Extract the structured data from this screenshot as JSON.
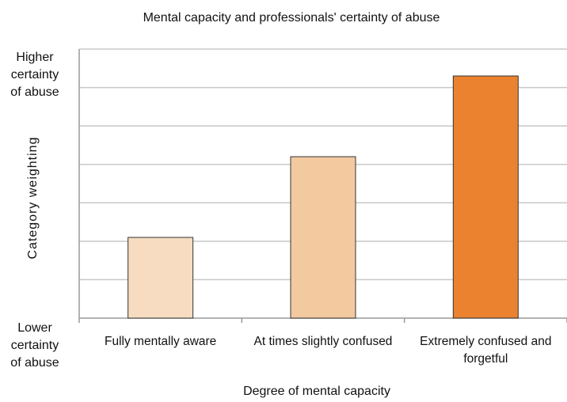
{
  "chart_data": {
    "type": "bar",
    "title": "Mental capacity and professionals' certainty of abuse",
    "xlabel": "Degree of mental capacity",
    "ylabel": "Category weighting",
    "y_top_label": [
      "Higher",
      "certainty",
      "of abuse"
    ],
    "y_bottom_label": [
      "Lower",
      "certainty",
      "of abuse"
    ],
    "categories": [
      "Fully mentally aware",
      "At times slightly confused",
      "Extremely confused and forgetful"
    ],
    "category_lines": [
      [
        "Fully mentally aware"
      ],
      [
        "At times slightly confused"
      ],
      [
        "Extremely confused and",
        "forgetful"
      ]
    ],
    "values": [
      2.1,
      4.2,
      6.3
    ],
    "ylim": [
      0,
      7
    ],
    "gridlines": 7,
    "grid": true,
    "show_y_ticks": false,
    "bar_colors": [
      "#f7dcc2",
      "#f3c9a0",
      "#ea822f"
    ],
    "bar_edge_color": "#333333",
    "grid_color": "#c8c8c8"
  }
}
